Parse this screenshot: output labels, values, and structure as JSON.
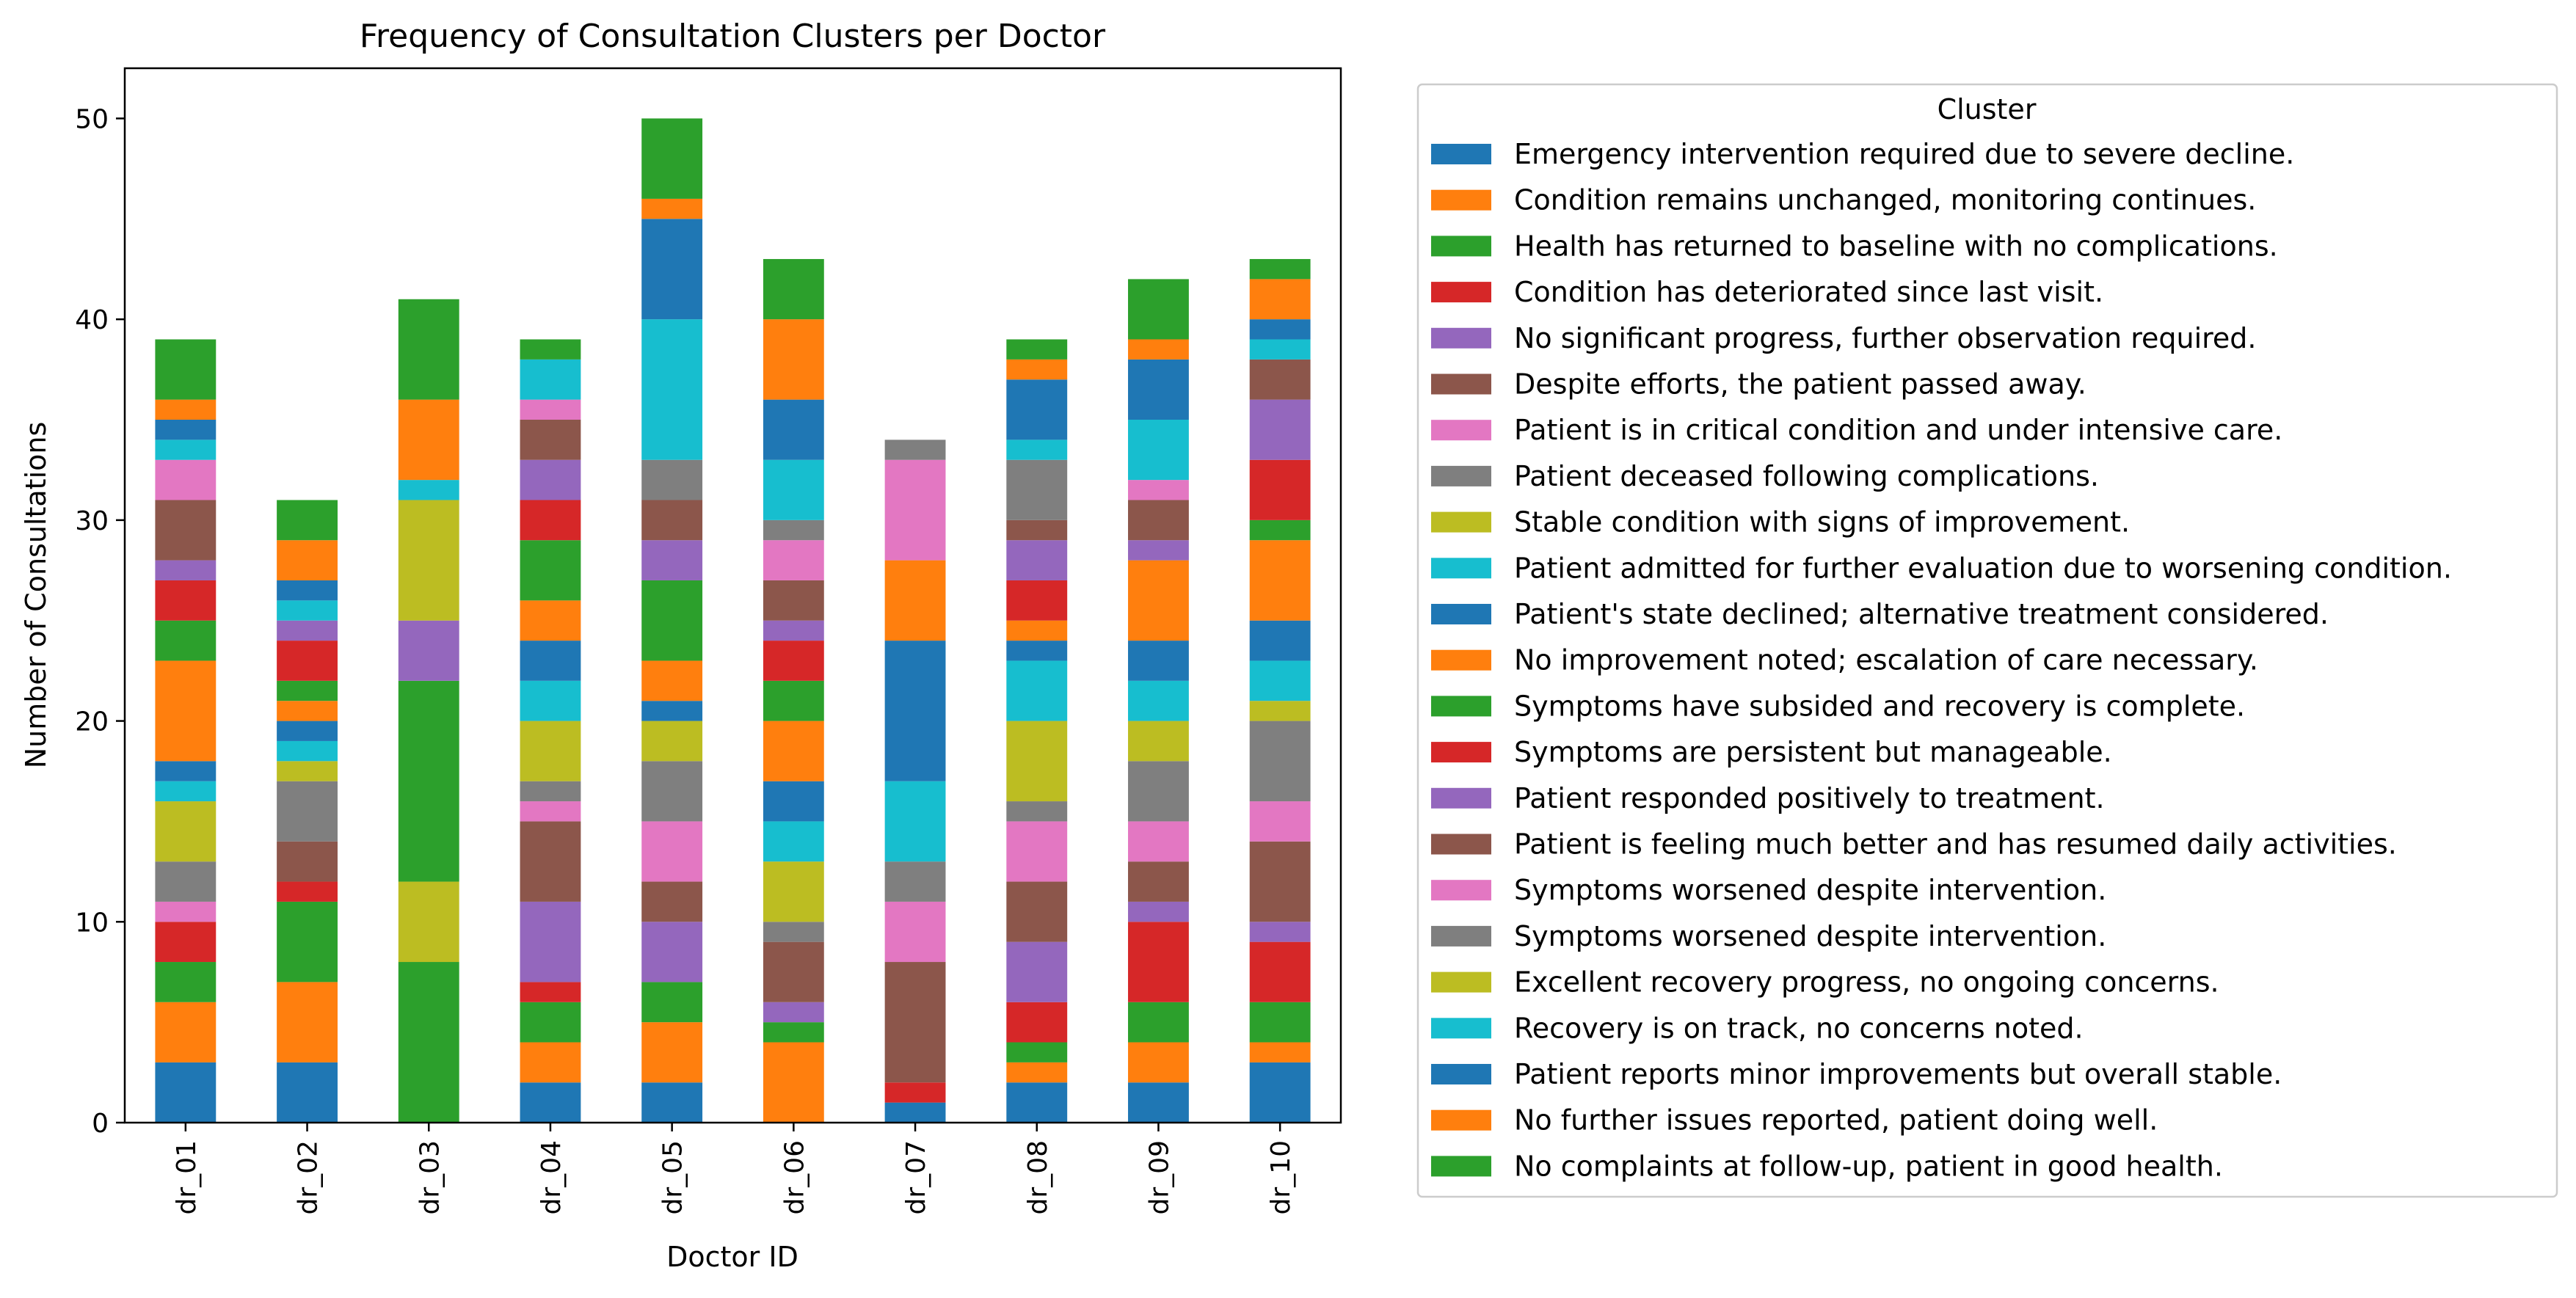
{
  "chart_data": {
    "type": "bar",
    "stacked": true,
    "title": "Frequency of Consultation Clusters per Doctor",
    "xlabel": "Doctor ID",
    "ylabel": "Number of Consultations",
    "ylim": [
      0,
      52.5
    ],
    "yticks": [
      0,
      10,
      20,
      30,
      40,
      50
    ],
    "grid": false,
    "legend_title": "Cluster",
    "legend_position": "outside-right",
    "categories": [
      "dr_01",
      "dr_02",
      "dr_03",
      "dr_04",
      "dr_05",
      "dr_06",
      "dr_07",
      "dr_08",
      "dr_09",
      "dr_10"
    ],
    "series": [
      {
        "name": "Emergency intervention required due to severe decline.",
        "color": "#1f77b4",
        "values": [
          3,
          3,
          0,
          2,
          2,
          0,
          1,
          2,
          2,
          3
        ]
      },
      {
        "name": "Condition remains unchanged, monitoring continues.",
        "color": "#ff7f0e",
        "values": [
          3,
          4,
          0,
          2,
          3,
          4,
          0,
          1,
          2,
          1
        ]
      },
      {
        "name": "Health has returned to baseline with no complications.",
        "color": "#2ca02c",
        "values": [
          2,
          4,
          8,
          2,
          2,
          1,
          0,
          1,
          2,
          2
        ]
      },
      {
        "name": "Condition has deteriorated since last visit.",
        "color": "#d62728",
        "values": [
          2,
          1,
          0,
          1,
          0,
          0,
          1,
          2,
          4,
          3
        ]
      },
      {
        "name": "No significant progress, further observation required.",
        "color": "#9467bd",
        "values": [
          0,
          0,
          0,
          4,
          3,
          1,
          0,
          3,
          1,
          1
        ]
      },
      {
        "name": "Despite efforts, the patient passed away.",
        "color": "#8c564b",
        "values": [
          0,
          2,
          0,
          4,
          2,
          3,
          6,
          3,
          2,
          4
        ]
      },
      {
        "name": "Patient is in critical condition and under intensive care.",
        "color": "#e377c2",
        "values": [
          1,
          0,
          0,
          1,
          3,
          0,
          3,
          3,
          2,
          2
        ]
      },
      {
        "name": "Patient deceased following complications.",
        "color": "#7f7f7f",
        "values": [
          2,
          3,
          0,
          1,
          3,
          1,
          2,
          1,
          3,
          4
        ]
      },
      {
        "name": "Stable condition with signs of improvement.",
        "color": "#bcbd22",
        "values": [
          3,
          1,
          4,
          3,
          2,
          3,
          0,
          4,
          2,
          1
        ]
      },
      {
        "name": "Patient admitted for further evaluation due to worsening condition.",
        "color": "#17becf",
        "values": [
          1,
          1,
          0,
          2,
          0,
          2,
          4,
          3,
          2,
          2
        ]
      },
      {
        "name": "Patient's state declined; alternative treatment considered.",
        "color": "#1f77b4",
        "values": [
          1,
          1,
          0,
          2,
          1,
          2,
          7,
          1,
          2,
          2
        ]
      },
      {
        "name": "No improvement noted; escalation of care necessary.",
        "color": "#ff7f0e",
        "values": [
          5,
          1,
          0,
          2,
          2,
          3,
          4,
          1,
          4,
          4
        ]
      },
      {
        "name": "Symptoms have subsided and recovery is complete.",
        "color": "#2ca02c",
        "values": [
          2,
          1,
          10,
          3,
          4,
          2,
          0,
          0,
          0,
          1
        ]
      },
      {
        "name": "Symptoms are persistent but manageable.",
        "color": "#d62728",
        "values": [
          2,
          2,
          0,
          2,
          0,
          2,
          0,
          2,
          0,
          3
        ]
      },
      {
        "name": "Patient responded positively to treatment.",
        "color": "#9467bd",
        "values": [
          1,
          1,
          3,
          2,
          2,
          1,
          0,
          2,
          1,
          3
        ]
      },
      {
        "name": "Patient is feeling much better and has resumed daily activities.",
        "color": "#8c564b",
        "values": [
          3,
          0,
          0,
          2,
          2,
          2,
          0,
          1,
          2,
          2
        ]
      },
      {
        "name": "Symptoms worsened despite intervention.",
        "color": "#e377c2",
        "values": [
          2,
          0,
          0,
          1,
          0,
          2,
          5,
          0,
          1,
          0
        ]
      },
      {
        "name": "Symptoms worsened despite intervention.",
        "color": "#7f7f7f",
        "values": [
          0,
          0,
          0,
          0,
          2,
          1,
          1,
          3,
          0,
          0
        ]
      },
      {
        "name": "Excellent recovery progress, no ongoing concerns.",
        "color": "#bcbd22",
        "values": [
          0,
          0,
          6,
          0,
          0,
          0,
          0,
          0,
          0,
          0
        ]
      },
      {
        "name": "Recovery is on track, no concerns noted.",
        "color": "#17becf",
        "values": [
          1,
          1,
          1,
          2,
          7,
          3,
          0,
          1,
          3,
          1
        ]
      },
      {
        "name": "Patient reports minor improvements but overall stable.",
        "color": "#1f77b4",
        "values": [
          1,
          1,
          0,
          0,
          5,
          3,
          0,
          3,
          3,
          1
        ]
      },
      {
        "name": "No further issues reported, patient doing well.",
        "color": "#ff7f0e",
        "values": [
          1,
          2,
          4,
          0,
          1,
          4,
          0,
          1,
          1,
          2
        ]
      },
      {
        "name": "No complaints at follow-up, patient in good health.",
        "color": "#2ca02c",
        "values": [
          3,
          2,
          5,
          1,
          4,
          3,
          0,
          1,
          3,
          1
        ]
      }
    ]
  }
}
